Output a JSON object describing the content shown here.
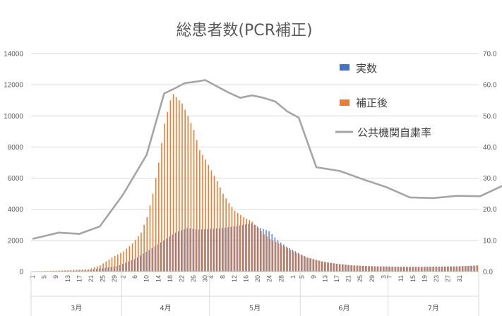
{
  "chart_data": {
    "type": "bar+line",
    "title": "総患者数(PCR補正)",
    "legend_position": "right-inside",
    "y_left": {
      "min": 0,
      "max": 14000,
      "step": 2000
    },
    "y_right": {
      "min": 0,
      "max": 70,
      "step": 10,
      "decimals": 1
    },
    "grid": true,
    "day_ticks": [
      "1",
      "5",
      "9",
      "13",
      "17",
      "21",
      "25",
      "29",
      "2",
      "6",
      "10",
      "14",
      "18",
      "22",
      "26",
      "30",
      "4",
      "8",
      "12",
      "16",
      "20",
      "24",
      "28",
      "1",
      "5",
      "9",
      "13",
      "17",
      "21",
      "25",
      "29",
      "3",
      "7",
      "11",
      "15",
      "19",
      "23",
      "27",
      "31"
    ],
    "months": [
      {
        "label": "3月",
        "days": 31
      },
      {
        "label": "4月",
        "days": 30
      },
      {
        "label": "5月",
        "days": 31
      },
      {
        "label": "6月",
        "days": 30
      },
      {
        "label": "7月",
        "days": 31
      }
    ],
    "series": [
      {
        "name": "実数",
        "type": "bar",
        "color": "#4472c4",
        "anchors": [
          [
            1,
            10
          ],
          [
            10,
            40
          ],
          [
            20,
            80
          ],
          [
            30,
            350
          ],
          [
            36,
            800
          ],
          [
            42,
            1500
          ],
          [
            46,
            2000
          ],
          [
            50,
            2500
          ],
          [
            54,
            2800
          ],
          [
            58,
            2700
          ],
          [
            62,
            2750
          ],
          [
            66,
            2800
          ],
          [
            70,
            2900
          ],
          [
            73,
            3000
          ],
          [
            76,
            3100
          ],
          [
            79,
            2800
          ],
          [
            82,
            2600
          ],
          [
            85,
            2000
          ],
          [
            88,
            1600
          ],
          [
            91,
            1300
          ],
          [
            95,
            900
          ],
          [
            100,
            650
          ],
          [
            105,
            500
          ],
          [
            110,
            400
          ],
          [
            116,
            350
          ],
          [
            120,
            330
          ],
          [
            126,
            310
          ],
          [
            132,
            300
          ],
          [
            140,
            320
          ],
          [
            146,
            330
          ],
          [
            152,
            380
          ],
          [
            158,
            480
          ],
          [
            163,
            700
          ],
          [
            168,
            900
          ],
          [
            171,
            1150
          ],
          [
            175,
            1400
          ],
          [
            179,
            1700
          ],
          [
            183,
            2000
          ],
          [
            186,
            2300
          ],
          [
            189,
            2700
          ],
          [
            193,
            2550
          ],
          [
            195,
            2800
          ]
        ]
      },
      {
        "name": "補正後",
        "type": "bar",
        "color": "#ed7d31",
        "anchors": [
          [
            1,
            20
          ],
          [
            10,
            70
          ],
          [
            20,
            150
          ],
          [
            24,
            400
          ],
          [
            28,
            900
          ],
          [
            32,
            1300
          ],
          [
            35,
            1800
          ],
          [
            38,
            2500
          ],
          [
            40,
            3500
          ],
          [
            42,
            5000
          ],
          [
            44,
            7000
          ],
          [
            46,
            9500
          ],
          [
            48,
            11000
          ],
          [
            49,
            11400
          ],
          [
            50,
            11200
          ],
          [
            52,
            10800
          ],
          [
            54,
            10000
          ],
          [
            56,
            9100
          ],
          [
            58,
            7800
          ],
          [
            60,
            7200
          ],
          [
            62,
            6500
          ],
          [
            64,
            5800
          ],
          [
            66,
            5000
          ],
          [
            68,
            4400
          ],
          [
            70,
            3900
          ],
          [
            73,
            3500
          ],
          [
            76,
            3200
          ],
          [
            78,
            2800
          ],
          [
            80,
            2400
          ],
          [
            82,
            2100
          ],
          [
            85,
            1800
          ],
          [
            88,
            1500
          ],
          [
            91,
            1200
          ],
          [
            95,
            900
          ],
          [
            100,
            650
          ],
          [
            105,
            500
          ],
          [
            110,
            400
          ],
          [
            116,
            350
          ],
          [
            120,
            330
          ],
          [
            126,
            310
          ],
          [
            132,
            300
          ],
          [
            140,
            320
          ],
          [
            146,
            330
          ],
          [
            152,
            380
          ],
          [
            158,
            480
          ],
          [
            163,
            700
          ],
          [
            168,
            900
          ],
          [
            171,
            1150
          ],
          [
            175,
            1400
          ],
          [
            179,
            1700
          ],
          [
            183,
            2000
          ],
          [
            186,
            2300
          ],
          [
            189,
            2700
          ],
          [
            193,
            2550
          ],
          [
            195,
            2800
          ]
        ]
      },
      {
        "name": "公共機関自粛率",
        "type": "line",
        "axis": "right",
        "color": "#a5a5a5",
        "anchors": [
          [
            1,
            10.5
          ],
          [
            10,
            12.5
          ],
          [
            17,
            12.1
          ],
          [
            24,
            14.5
          ],
          [
            32,
            24.8
          ],
          [
            40,
            37.5
          ],
          [
            46,
            57.2
          ],
          [
            50,
            59
          ],
          [
            53,
            60.5
          ],
          [
            57,
            61
          ],
          [
            60,
            61.5
          ],
          [
            64,
            59.5
          ],
          [
            68,
            57.5
          ],
          [
            72,
            55.8
          ],
          [
            76,
            56.6
          ],
          [
            80,
            55.8
          ],
          [
            84,
            54.6
          ],
          [
            88,
            51.5
          ],
          [
            92,
            49.4
          ],
          [
            98,
            33.5
          ],
          [
            106,
            32.3
          ],
          [
            114,
            29.6
          ],
          [
            122,
            27.1
          ],
          [
            130,
            23.8
          ],
          [
            138,
            23.6
          ],
          [
            146,
            24.3
          ],
          [
            154,
            24.2
          ],
          [
            162,
            27.7
          ]
        ]
      }
    ]
  }
}
